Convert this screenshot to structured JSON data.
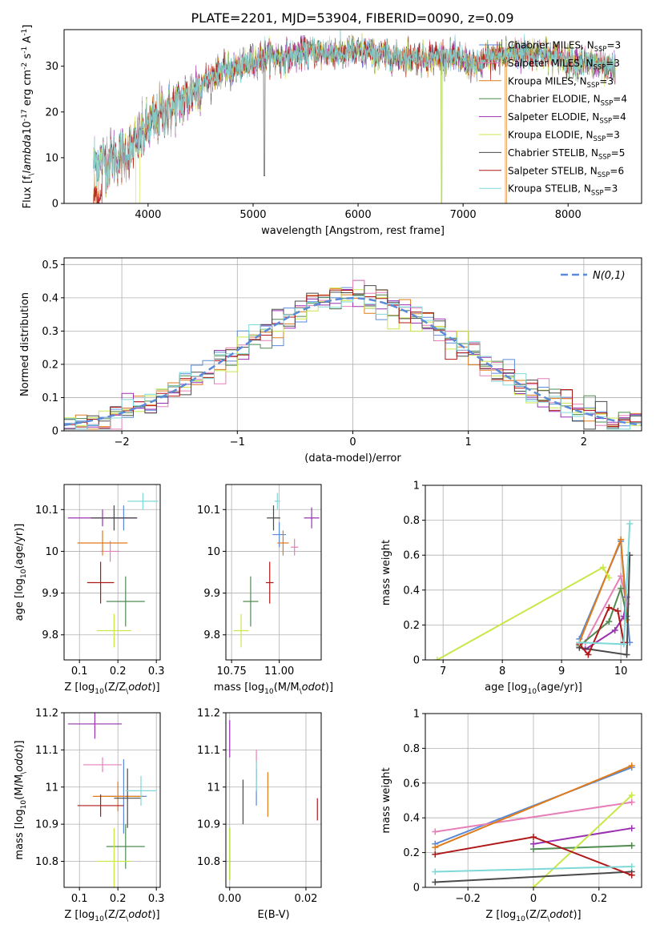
{
  "title": "PLATE=2201, MJD=53904, FIBERID=0090, z=0.09",
  "series_names": [
    "Chabrier MILES, N$_{SSP}$=3",
    "Salpeter MILES, N$_{SSP}$=3",
    "Kroupa MILES, N$_{SSP}$=3",
    "Chabrier ELODIE, N$_{SSP}$=4",
    "Salpeter ELODIE, N$_{SSP}$=4",
    "Kroupa ELODIE, N$_{SSP}$=3",
    "Chabrier STELIB, N$_{SSP}$=5",
    "Salpeter STELIB, N$_{SSP}$=6",
    "Kroupa STELIB, N$_{SSP}$=3"
  ],
  "colors": [
    "#5b8ad8",
    "#e67fb8",
    "#e07b1a",
    "#4f8a4f",
    "#9b30b0",
    "#c8e84a",
    "#4a4a4a",
    "#b01818",
    "#7fd8d8"
  ],
  "chart_data": [
    {
      "type": "line",
      "name": "spectrum",
      "xlabel": "wavelength [Angstrom, rest frame]",
      "ylabel": "Flux [f$_\\lambda$10$^{-17}$ erg cm$^{-2}$ s$^{-1}$ A$^{-1}$]",
      "xlim": [
        3200,
        8700
      ],
      "ylim": [
        0,
        38
      ],
      "xticks": [
        4000,
        5000,
        6000,
        7000,
        8000
      ],
      "yticks": [
        0,
        10,
        20,
        30
      ],
      "legend": "upper right",
      "grid": false,
      "continuum_x": [
        3500,
        3700,
        3850,
        4000,
        4150,
        4300,
        4500,
        4700,
        4900,
        5100,
        5300,
        5500,
        5700,
        5900,
        6100,
        6300,
        6500,
        6700,
        6900,
        7100,
        7300,
        7500,
        7700,
        7900,
        8100,
        8300,
        8450
      ],
      "continuum_y": [
        9,
        10,
        12,
        17,
        20,
        22,
        26,
        29,
        30,
        32,
        32,
        33,
        33,
        33,
        33,
        32,
        32,
        32,
        32,
        30,
        32,
        33,
        33,
        32,
        31,
        30,
        29
      ]
    },
    {
      "type": "bar",
      "name": "residual histogram",
      "xlabel": "(data-model)/error",
      "ylabel": "Normed distribution",
      "xlim": [
        -2.5,
        2.5
      ],
      "ylim": [
        0,
        0.52
      ],
      "xticks": [
        -2,
        -1,
        0,
        1,
        2
      ],
      "yticks": [
        0.0,
        0.1,
        0.2,
        0.3,
        0.4,
        0.5
      ],
      "grid": true,
      "legend": "upper right",
      "reference_curve": "$\\mathcal{N}(0,1)$",
      "bin_width": 0.1
    },
    {
      "type": "scatter",
      "name": "age vs Z",
      "xlabel": "Z [log$_{10}$(Z/Z$_\\odot$)]",
      "ylabel": "age  [log$_{10}$(age/yr)]",
      "xlim": [
        0.06,
        0.31
      ],
      "ylim": [
        9.74,
        10.16
      ],
      "xticks": [
        0.1,
        0.2,
        0.3
      ],
      "yticks": [
        9.8,
        9.9,
        10.0,
        10.1
      ],
      "grid": true,
      "points": [
        {
          "x": 0.215,
          "y": 10.08,
          "xerr": 0.03,
          "yerr": 0.03
        },
        {
          "x": 0.18,
          "y": 10.0,
          "xerr": 0.025,
          "yerr": 0.025
        },
        {
          "x": 0.16,
          "y": 10.02,
          "xerr": 0.065,
          "yerr": 0.03
        },
        {
          "x": 0.22,
          "y": 9.88,
          "xerr": 0.05,
          "yerr": 0.06
        },
        {
          "x": 0.16,
          "y": 10.08,
          "xerr": 0.09,
          "yerr": 0.02
        },
        {
          "x": 0.19,
          "y": 9.81,
          "xerr": 0.045,
          "yerr": 0.04
        },
        {
          "x": 0.19,
          "y": 10.08,
          "xerr": 0.06,
          "yerr": 0.03
        },
        {
          "x": 0.155,
          "y": 9.925,
          "xerr": 0.035,
          "yerr": 0.05
        },
        {
          "x": 0.265,
          "y": 10.12,
          "xerr": 0.04,
          "yerr": 0.02
        }
      ]
    },
    {
      "type": "scatter",
      "name": "age vs mass",
      "xlabel": "mass [log$_{10}$(M/M$_\\odot$)]",
      "ylabel": "",
      "xlim": [
        10.72,
        11.22
      ],
      "ylim": [
        9.74,
        10.16
      ],
      "xticks": [
        10.75,
        11.0
      ],
      "xticklabels": [
        "10.75",
        "11.00"
      ],
      "yticks": [
        9.8,
        9.9,
        10.0,
        10.1
      ],
      "grid": true,
      "points": [
        {
          "x": 11.0,
          "y": 10.04,
          "xerr": 0.035,
          "yerr": 0.03
        },
        {
          "x": 11.08,
          "y": 10.01,
          "xerr": 0.02,
          "yerr": 0.02
        },
        {
          "x": 11.02,
          "y": 10.02,
          "xerr": 0.03,
          "yerr": 0.03
        },
        {
          "x": 10.85,
          "y": 9.88,
          "xerr": 0.04,
          "yerr": 0.06
        },
        {
          "x": 11.17,
          "y": 10.08,
          "xerr": 0.04,
          "yerr": 0.025
        },
        {
          "x": 10.8,
          "y": 9.81,
          "xerr": 0.04,
          "yerr": 0.04
        },
        {
          "x": 10.97,
          "y": 10.08,
          "xerr": 0.035,
          "yerr": 0.03
        },
        {
          "x": 10.95,
          "y": 9.925,
          "xerr": 0.02,
          "yerr": 0.05
        },
        {
          "x": 10.99,
          "y": 10.12,
          "xerr": 0.015,
          "yerr": 0.02
        }
      ]
    },
    {
      "type": "line",
      "name": "mass weight vs age",
      "xlabel": "age  [log$_{10}$(age/yr)]",
      "ylabel": "mass weight",
      "xlim": [
        6.7,
        10.35
      ],
      "ylim": [
        0,
        1.0
      ],
      "xticks": [
        7,
        8,
        9,
        10
      ],
      "yticks": [
        0.0,
        0.2,
        0.4,
        0.6,
        0.8,
        1.0
      ],
      "grid": true,
      "series": [
        {
          "x": [
            9.3,
            10.0,
            10.15
          ],
          "y": [
            0.12,
            0.68,
            0.1
          ]
        },
        {
          "x": [
            9.4,
            10.0,
            10.1
          ],
          "y": [
            0.1,
            0.48,
            0.32
          ]
        },
        {
          "x": [
            9.3,
            10.0,
            10.1
          ],
          "y": [
            0.1,
            0.69,
            0.23
          ]
        },
        {
          "x": [
            9.3,
            9.8,
            10.0,
            10.1
          ],
          "y": [
            0.08,
            0.22,
            0.41,
            0.25
          ]
        },
        {
          "x": [
            9.4,
            9.9,
            10.05,
            10.1
          ],
          "y": [
            0.06,
            0.17,
            0.25,
            0.36
          ]
        },
        {
          "x": [
            6.9,
            9.7,
            9.8
          ],
          "y": [
            0.0,
            0.53,
            0.47
          ]
        },
        {
          "x": [
            9.3,
            10.1,
            10.15
          ],
          "y": [
            0.07,
            0.03,
            0.6
          ]
        },
        {
          "x": [
            9.3,
            9.45,
            9.8,
            9.95,
            10.05
          ],
          "y": [
            0.09,
            0.03,
            0.3,
            0.28,
            0.1
          ]
        },
        {
          "x": [
            9.3,
            10.05,
            10.15
          ],
          "y": [
            0.1,
            0.09,
            0.78
          ]
        }
      ]
    },
    {
      "type": "scatter",
      "name": "mass vs Z",
      "xlabel": "Z [log$_{10}$(Z/Z$_\\odot$)]",
      "ylabel": "mass [log$_{10}$(M/M$_\\odot$)]",
      "xlim": [
        0.06,
        0.31
      ],
      "ylim": [
        10.73,
        11.2
      ],
      "xticks": [
        0.1,
        0.2,
        0.3
      ],
      "yticks": [
        10.8,
        10.9,
        11.0,
        11.1,
        11.2
      ],
      "grid": true,
      "points": [
        {
          "x": 0.215,
          "y": 10.975,
          "xerr": 0.06,
          "yerr": 0.1
        },
        {
          "x": 0.16,
          "y": 11.06,
          "xerr": 0.05,
          "yerr": 0.02
        },
        {
          "x": 0.2,
          "y": 10.975,
          "xerr": 0.065,
          "yerr": 0.04
        },
        {
          "x": 0.22,
          "y": 10.84,
          "xerr": 0.05,
          "yerr": 0.06
        },
        {
          "x": 0.14,
          "y": 11.17,
          "xerr": 0.07,
          "yerr": 0.04
        },
        {
          "x": 0.19,
          "y": 10.8,
          "xerr": 0.045,
          "yerr": 0.09
        },
        {
          "x": 0.225,
          "y": 10.97,
          "xerr": 0.035,
          "yerr": 0.08
        },
        {
          "x": 0.155,
          "y": 10.95,
          "xerr": 0.06,
          "yerr": 0.03
        },
        {
          "x": 0.26,
          "y": 10.99,
          "xerr": 0.04,
          "yerr": 0.04
        }
      ]
    },
    {
      "type": "scatter",
      "name": "mass vs extinction",
      "xlabel": "E(B-V)",
      "ylabel": "",
      "xlim": [
        -0.001,
        0.024
      ],
      "ylim": [
        10.73,
        11.2
      ],
      "xticks": [
        0.0,
        0.02
      ],
      "xticklabels": [
        "0.00",
        "0.02"
      ],
      "yticks": [
        10.8,
        10.9,
        11.0,
        11.1,
        11.2
      ],
      "grid": true,
      "points": [
        {
          "x": 0.007,
          "y": 11.0,
          "yerr": 0.05
        },
        {
          "x": 0.007,
          "y": 11.06,
          "yerr": 0.04
        },
        {
          "x": 0.01,
          "y": 10.98,
          "yerr": 0.06
        },
        {
          "x": 0.0,
          "y": 10.82,
          "yerr": 0.07
        },
        {
          "x": 0.0,
          "y": 11.13,
          "yerr": 0.05
        },
        {
          "x": 0.0,
          "y": 10.82,
          "yerr": 0.07
        },
        {
          "x": 0.0035,
          "y": 10.96,
          "yerr": 0.06
        },
        {
          "x": 0.023,
          "y": 10.94,
          "yerr": 0.03
        },
        {
          "x": 0.007,
          "y": 11.03,
          "yerr": 0.04
        }
      ]
    },
    {
      "type": "line",
      "name": "mass weight vs Z",
      "xlabel": "Z [log$_{10}$(Z/Z$_\\odot$)]",
      "ylabel": "mass weight",
      "xlim": [
        -0.33,
        0.33
      ],
      "ylim": [
        0,
        1.0
      ],
      "xticks": [
        -0.2,
        0.0,
        0.2
      ],
      "yticks": [
        0.0,
        0.2,
        0.4,
        0.6,
        0.8,
        1.0
      ],
      "grid": true,
      "series": [
        {
          "x": [
            -0.3,
            0.3
          ],
          "y": [
            0.25,
            0.69
          ]
        },
        {
          "x": [
            -0.3,
            0.3
          ],
          "y": [
            0.32,
            0.49
          ]
        },
        {
          "x": [
            -0.3,
            0.3
          ],
          "y": [
            0.23,
            0.7
          ]
        },
        {
          "x": [
            0.0,
            0.3
          ],
          "y": [
            0.22,
            0.24
          ]
        },
        {
          "x": [
            0.0,
            0.3
          ],
          "y": [
            0.25,
            0.34
          ]
        },
        {
          "x": [
            0.0,
            0.3
          ],
          "y": [
            0.0,
            0.53
          ]
        },
        {
          "x": [
            -0.3,
            0.3
          ],
          "y": [
            0.03,
            0.09
          ]
        },
        {
          "x": [
            -0.3,
            0.0,
            0.3
          ],
          "y": [
            0.19,
            0.29,
            0.07
          ]
        },
        {
          "x": [
            -0.3,
            0.3
          ],
          "y": [
            0.09,
            0.12
          ]
        }
      ]
    }
  ]
}
